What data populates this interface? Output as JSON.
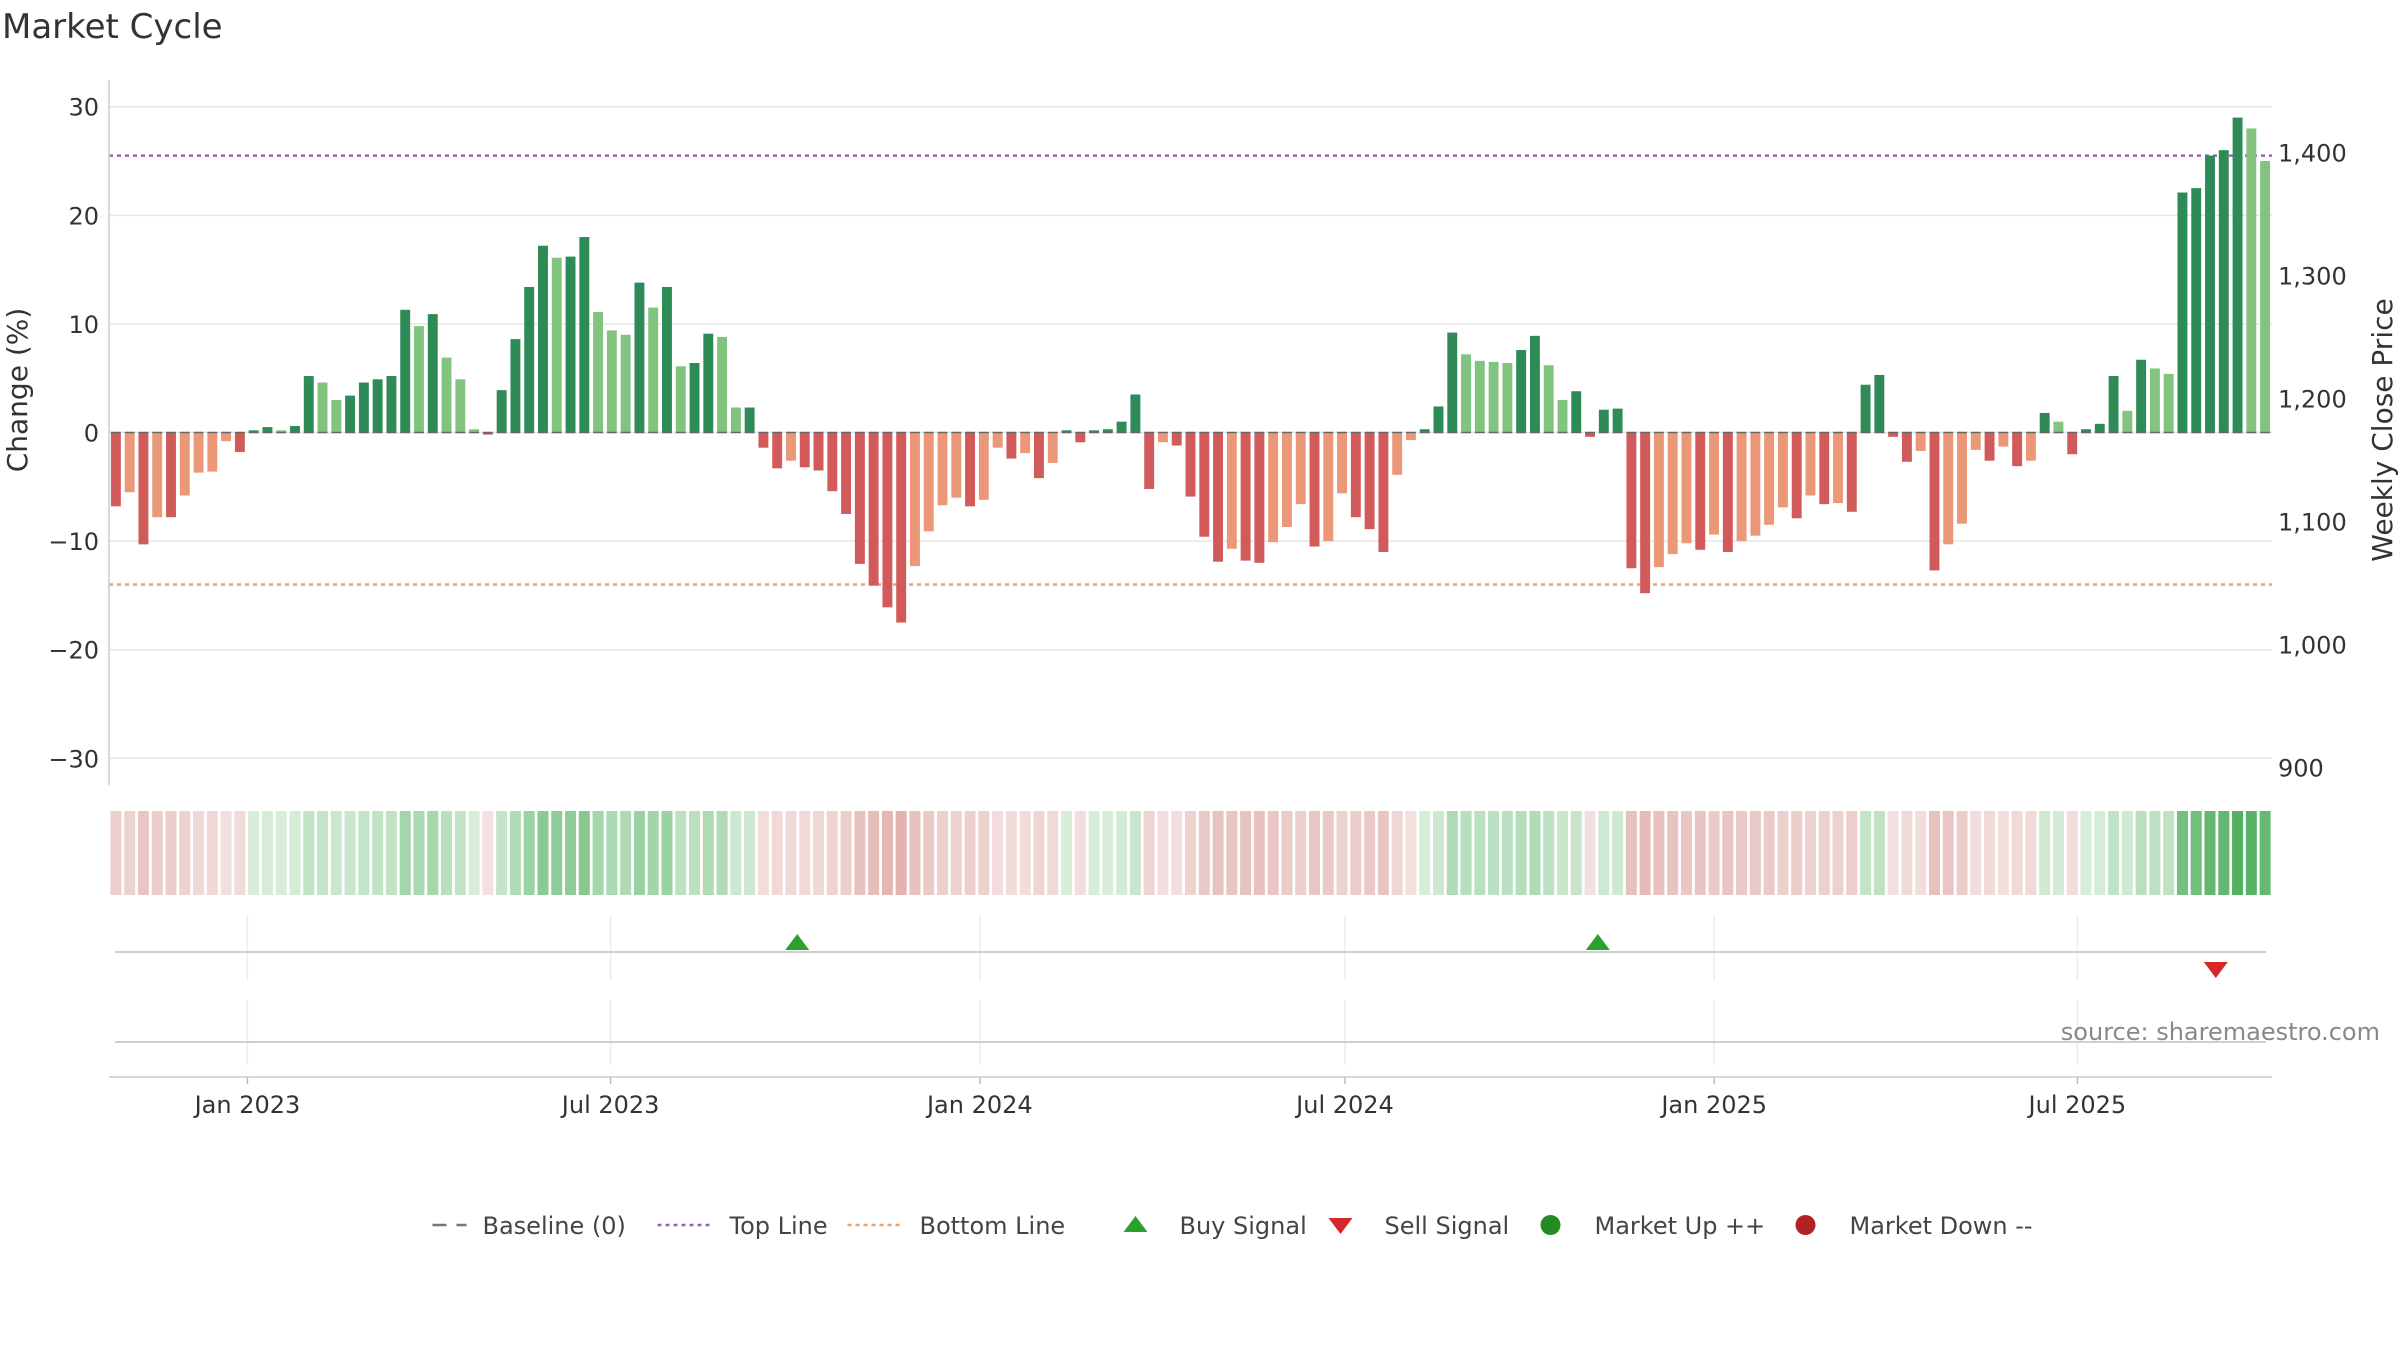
{
  "chart_data": {
    "type": "bar",
    "title": "Market Cycle",
    "ylabel": "Change (%)",
    "y2label": "Weekly Close Price",
    "ylim": [
      -32,
      32
    ],
    "yticks": [
      30,
      20,
      10,
      0,
      -10,
      -20,
      -30
    ],
    "ytick_labels": [
      "30",
      "20",
      "10",
      "0",
      "−10",
      "−20",
      "−30"
    ],
    "y2lim": [
      890,
      1455
    ],
    "y2ticks": [
      1400,
      1300,
      1200,
      1100,
      1000,
      900
    ],
    "y2tick_labels": [
      "1,400",
      "1,300",
      "1,200",
      "1,100",
      "1,000",
      "900"
    ],
    "top_line": 25.5,
    "bottom_line": -14,
    "baseline": 0,
    "x_start": "2022-10-24",
    "x_end": "2025-10-06",
    "x_ticks": [
      {
        "date": "2023-01-01",
        "label": "Jan 2023"
      },
      {
        "date": "2023-07-01",
        "label": "Jul 2023"
      },
      {
        "date": "2024-01-01",
        "label": "Jan 2024"
      },
      {
        "date": "2024-07-01",
        "label": "Jul 2024"
      },
      {
        "date": "2025-01-01",
        "label": "Jan 2025"
      },
      {
        "date": "2025-07-01",
        "label": "Jul 2025"
      }
    ],
    "values": [
      -6.8,
      -5.5,
      -10.3,
      -7.8,
      -7.8,
      -5.8,
      -3.7,
      -3.6,
      -0.8,
      -1.8,
      0.2,
      0.5,
      0.2,
      0.6,
      5.2,
      4.6,
      3.0,
      3.4,
      4.6,
      4.9,
      5.2,
      11.3,
      9.8,
      10.9,
      6.9,
      4.9,
      0.3,
      -0.2,
      3.9,
      8.6,
      13.4,
      17.2,
      16.1,
      16.2,
      18.0,
      11.1,
      9.4,
      9.0,
      13.8,
      11.5,
      13.4,
      6.1,
      6.4,
      9.1,
      8.8,
      2.3,
      2.3,
      -1.4,
      -3.3,
      -2.6,
      -3.2,
      -3.5,
      -5.4,
      -7.5,
      -12.1,
      -14.1,
      -16.1,
      -17.5,
      -12.3,
      -9.1,
      -6.7,
      -6.0,
      -6.8,
      -6.2,
      -1.4,
      -2.4,
      -1.9,
      -4.2,
      -2.8,
      0.2,
      -0.9,
      0.2,
      0.3,
      1.0,
      3.5,
      -5.2,
      -0.9,
      -1.2,
      -5.9,
      -9.6,
      -11.9,
      -10.7,
      -11.8,
      -12.0,
      -10.1,
      -8.7,
      -6.6,
      -10.5,
      -10.0,
      -5.6,
      -7.8,
      -8.9,
      -11.0,
      -3.9,
      -0.7,
      0.3,
      2.4,
      9.2,
      7.2,
      6.6,
      6.5,
      6.4,
      7.6,
      8.9,
      6.2,
      3.0,
      3.8,
      -0.4,
      2.1,
      2.2,
      -12.5,
      -14.8,
      -12.4,
      -11.2,
      -10.2,
      -10.8,
      -9.4,
      -11.0,
      -10.0,
      -9.5,
      -8.5,
      -6.9,
      -7.9,
      -5.8,
      -6.6,
      -6.5,
      -7.3,
      4.4,
      5.3,
      -0.4,
      -2.7,
      -1.7,
      -12.7,
      -10.3,
      -8.4,
      -1.6,
      -2.6,
      -1.3,
      -3.1,
      -2.6,
      1.8,
      1.0,
      -2.0,
      0.3,
      0.8,
      5.2,
      2.0,
      6.7,
      5.9,
      5.4,
      22.1,
      22.5,
      25.5,
      26.0,
      29.0,
      28.0,
      25.0
    ],
    "bar_colors": {
      "up_strong": "#2e8b57",
      "up_weak": "#82c47f",
      "down_strong": "#d15b5b",
      "down_weak": "#ea9878"
    },
    "band_colors": {
      "up": "#4cae5b",
      "down": "#c97770"
    },
    "signals": {
      "buy": [
        {
          "date": "2023-10-02"
        },
        {
          "date": "2024-11-04"
        }
      ],
      "sell": [
        {
          "date": "2025-09-08"
        }
      ]
    },
    "legend": {
      "position": "bottom-center",
      "items": [
        {
          "label": "Baseline (0)",
          "symbol": "dash",
          "color": "#777777"
        },
        {
          "label": "Top Line",
          "symbol": "dotted",
          "color": "#9467bd"
        },
        {
          "label": "Bottom Line",
          "symbol": "dotted",
          "color": "#f0a060"
        },
        {
          "label": "Buy Signal",
          "symbol": "triangle-up",
          "color": "#2ca02c"
        },
        {
          "label": "Sell Signal",
          "symbol": "triangle-down",
          "color": "#d62728"
        },
        {
          "label": "Market Up ++",
          "symbol": "circle",
          "color": "#228b22"
        },
        {
          "label": "Market Down --",
          "symbol": "circle",
          "color": "#b22222"
        }
      ]
    },
    "source": "source: sharemaestro.com",
    "colors": {
      "top_line": "#9467bd",
      "bottom_line": "#f0a060",
      "buy": "#2ca02c",
      "sell": "#d62728",
      "grid": "#e6e6e6"
    }
  }
}
